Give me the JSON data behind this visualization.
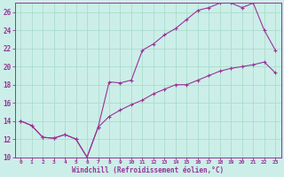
{
  "xlabel": "Windchill (Refroidissement éolien,°C)",
  "background_color": "#cceee8",
  "grid_color": "#aaddcc",
  "line_color": "#993399",
  "x_vals": [
    0,
    1,
    2,
    3,
    4,
    5,
    6,
    7,
    8,
    9,
    10,
    11,
    12,
    13,
    14,
    15,
    16,
    17,
    18,
    19,
    20,
    21,
    22,
    23
  ],
  "y_line1": [
    14.0,
    13.5,
    12.2,
    12.1,
    12.5,
    12.0,
    10.0,
    13.3,
    18.3,
    18.2,
    18.5,
    21.8,
    22.5,
    23.5,
    24.2,
    25.2,
    26.2,
    26.5,
    27.0,
    27.0,
    26.5,
    27.0,
    24.0,
    21.8
  ],
  "y_line2": [
    14.0,
    13.5,
    12.2,
    12.1,
    12.5,
    12.0,
    10.0,
    13.3,
    14.5,
    15.2,
    15.8,
    16.3,
    17.0,
    17.5,
    18.0,
    18.0,
    18.5,
    19.0,
    19.5,
    19.8,
    20.0,
    20.2,
    20.5,
    19.3
  ],
  "ylim": [
    10,
    27
  ],
  "xlim": [
    -0.5,
    23.5
  ],
  "yticks": [
    10,
    12,
    14,
    16,
    18,
    20,
    22,
    24,
    26
  ],
  "xticks": [
    0,
    1,
    2,
    3,
    4,
    5,
    6,
    7,
    8,
    9,
    10,
    11,
    12,
    13,
    14,
    15,
    16,
    17,
    18,
    19,
    20,
    21,
    22,
    23
  ],
  "marker": "+",
  "marker_size": 3.5,
  "line_width": 0.8
}
